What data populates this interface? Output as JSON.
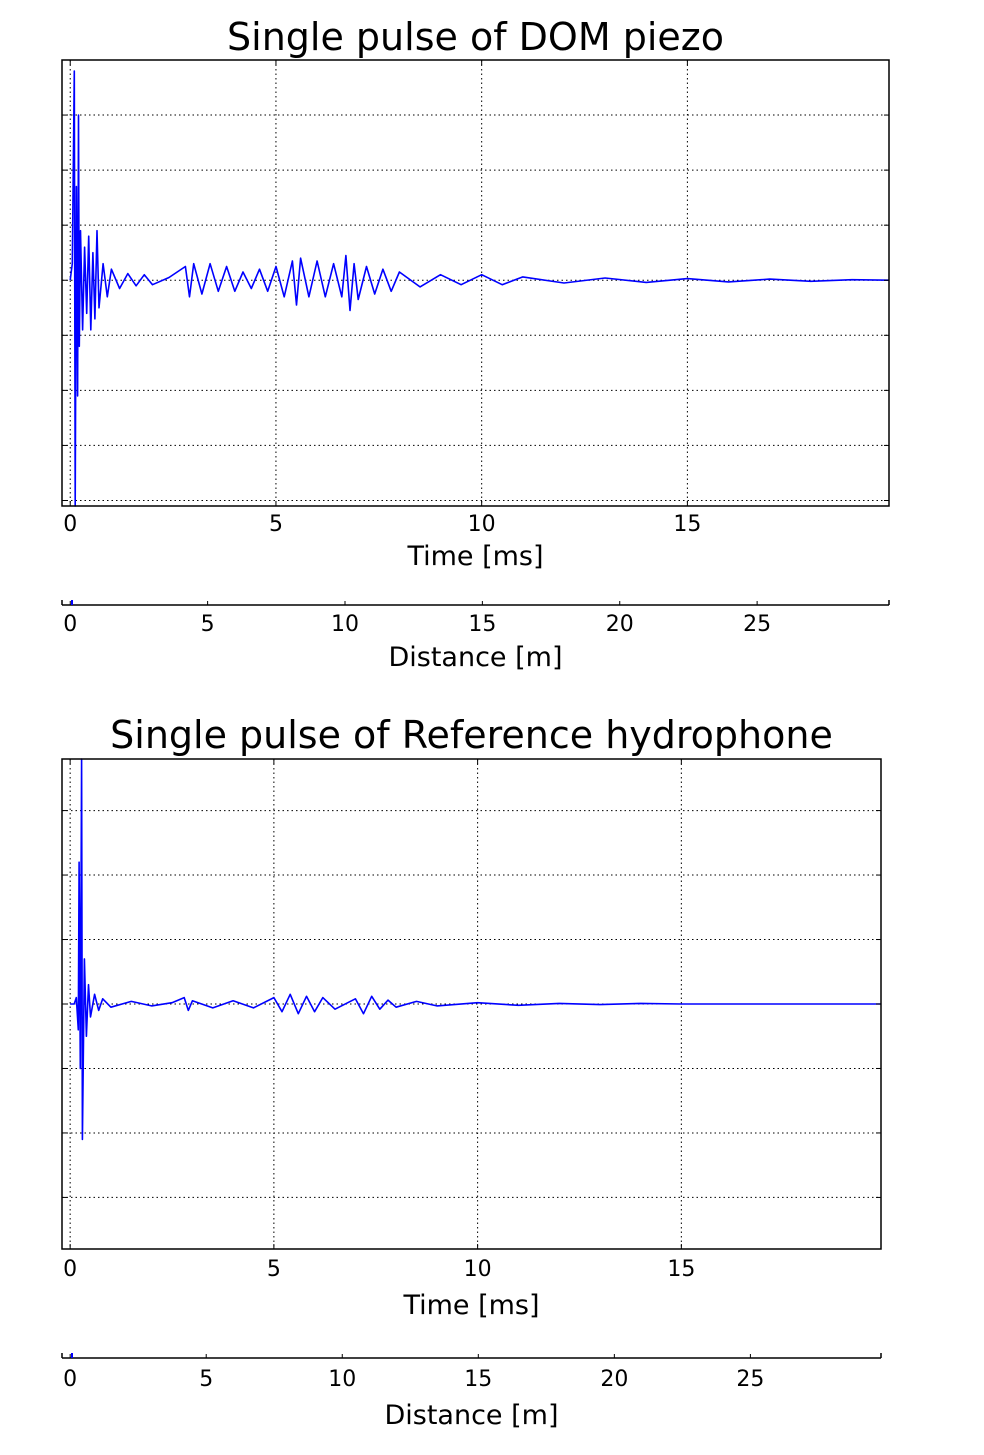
{
  "chart_data": [
    {
      "type": "line",
      "title": "Single pulse of DOM piezo",
      "xlabel": "Time [ms]",
      "ylabel": "",
      "xlim": [
        -0.2,
        19.9
      ],
      "ylim": [
        -4.1,
        4.0
      ],
      "xticks": [
        0,
        5,
        10,
        15
      ],
      "yticks": [
        -4,
        -3,
        -2,
        -1,
        0,
        1,
        2,
        3
      ],
      "grid": true,
      "color": "#0000ff",
      "secondary_axis": {
        "label": "Distance [m]",
        "xlim": [
          -0.3,
          29.8
        ],
        "ticks": [
          0,
          5,
          10,
          15,
          20,
          25
        ]
      },
      "series": [
        {
          "x": [
            0.0,
            0.05,
            0.1,
            0.12,
            0.15,
            0.18,
            0.2,
            0.22,
            0.25,
            0.3,
            0.35,
            0.4,
            0.45,
            0.5,
            0.55,
            0.6,
            0.65,
            0.7,
            0.8,
            0.9,
            1.0,
            1.2,
            1.4,
            1.6,
            1.8,
            2.0,
            2.4,
            2.8,
            2.9,
            3.0,
            3.2,
            3.4,
            3.6,
            3.8,
            4.0,
            4.2,
            4.4,
            4.6,
            4.8,
            5.0,
            5.2,
            5.4,
            5.5,
            5.6,
            5.8,
            6.0,
            6.2,
            6.4,
            6.6,
            6.7,
            6.8,
            6.9,
            7.0,
            7.2,
            7.4,
            7.6,
            7.8,
            8.0,
            8.5,
            9.0,
            9.5,
            10.0,
            10.5,
            11.0,
            12.0,
            13.0,
            14.0,
            15.0,
            16.0,
            17.0,
            18.0,
            19.0,
            19.9
          ],
          "y": [
            0.0,
            0.3,
            3.8,
            -4.1,
            1.7,
            -2.1,
            3.0,
            -1.2,
            0.9,
            -0.9,
            0.6,
            -0.6,
            0.8,
            -0.9,
            0.5,
            -0.7,
            0.9,
            -0.5,
            0.3,
            -0.3,
            0.2,
            -0.15,
            0.12,
            -0.1,
            0.1,
            -0.08,
            0.05,
            0.25,
            -0.3,
            0.3,
            -0.25,
            0.3,
            -0.2,
            0.25,
            -0.2,
            0.15,
            -0.15,
            0.2,
            -0.2,
            0.25,
            -0.3,
            0.35,
            -0.45,
            0.4,
            -0.3,
            0.35,
            -0.3,
            0.3,
            -0.3,
            0.45,
            -0.55,
            0.3,
            -0.35,
            0.25,
            -0.25,
            0.2,
            -0.2,
            0.15,
            -0.12,
            0.1,
            -0.08,
            0.1,
            -0.08,
            0.06,
            -0.05,
            0.04,
            -0.04,
            0.03,
            -0.03,
            0.02,
            -0.02,
            0.01,
            0.0
          ]
        }
      ]
    },
    {
      "type": "line",
      "title": "Single pulse of Reference hydrophone",
      "xlabel": "Time [ms]",
      "ylabel": "",
      "xlim": [
        -0.2,
        19.9
      ],
      "ylim": [
        -3.8,
        3.8
      ],
      "xticks": [
        0,
        5,
        10,
        15
      ],
      "yticks": [
        -3,
        -2,
        -1,
        0,
        1,
        2,
        3
      ],
      "grid": true,
      "color": "#0000ff",
      "secondary_axis": {
        "label": "Distance [m]",
        "xlim": [
          -0.3,
          29.8
        ],
        "ticks": [
          0,
          5,
          10,
          15,
          20,
          25
        ]
      },
      "series": [
        {
          "x": [
            0.0,
            0.1,
            0.15,
            0.2,
            0.22,
            0.25,
            0.28,
            0.3,
            0.35,
            0.4,
            0.45,
            0.5,
            0.6,
            0.7,
            0.8,
            1.0,
            1.5,
            2.0,
            2.5,
            2.8,
            2.9,
            3.0,
            3.5,
            4.0,
            4.5,
            5.0,
            5.2,
            5.4,
            5.6,
            5.8,
            6.0,
            6.2,
            6.5,
            7.0,
            7.2,
            7.4,
            7.6,
            7.8,
            8.0,
            8.5,
            9.0,
            10.0,
            11.0,
            12.0,
            13.0,
            14.0,
            15.0,
            16.0,
            17.0,
            18.0,
            19.0,
            19.9
          ],
          "y": [
            0.0,
            0.0,
            0.1,
            -0.4,
            2.2,
            -1.0,
            3.8,
            -2.1,
            0.7,
            -0.5,
            0.3,
            -0.2,
            0.15,
            -0.1,
            0.08,
            -0.05,
            0.04,
            -0.03,
            0.02,
            0.1,
            -0.1,
            0.05,
            -0.06,
            0.05,
            -0.06,
            0.1,
            -0.12,
            0.15,
            -0.15,
            0.12,
            -0.12,
            0.1,
            -0.08,
            0.08,
            -0.15,
            0.12,
            -0.08,
            0.06,
            -0.05,
            0.04,
            -0.03,
            0.02,
            -0.02,
            0.01,
            -0.01,
            0.01,
            0.0,
            0.0,
            0.0,
            0.0,
            0.0,
            0.0
          ]
        }
      ]
    }
  ]
}
